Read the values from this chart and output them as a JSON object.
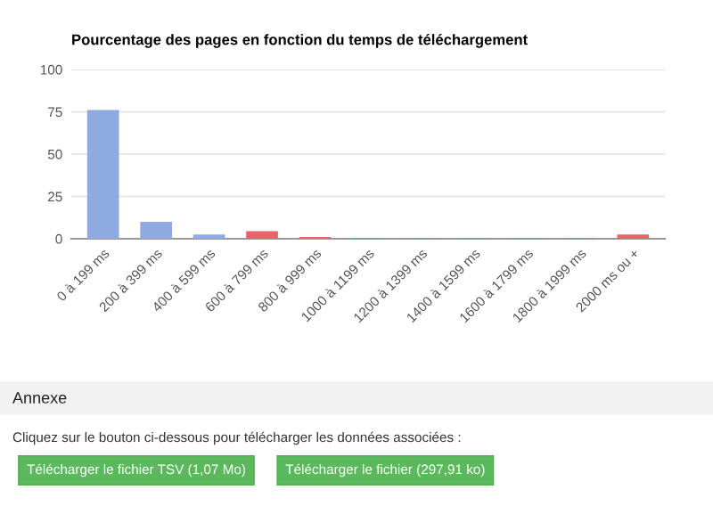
{
  "chart_data": {
    "type": "bar",
    "title": "Pourcentage des pages en fonction du temps de téléchargement",
    "categories": [
      "0 à 199 ms",
      "200 à 399 ms",
      "400 à 599 ms",
      "600 à 799 ms",
      "800 à 999 ms",
      "1000 à 1199 ms",
      "1200 à 1399 ms",
      "1400 à 1599 ms",
      "1600 à 1799 ms",
      "1800 à 1999 ms",
      "2000 ms ou +"
    ],
    "values": [
      76,
      10,
      2.5,
      4.5,
      1,
      0.3,
      0.3,
      0.3,
      0.3,
      0.3,
      2.5
    ],
    "colors": [
      "#8eaae0",
      "#8eaae0",
      "#8eaae0",
      "#e8636a",
      "#e8636a",
      "#e8636a",
      "#e8636a",
      "#e8636a",
      "#e8636a",
      "#e8636a",
      "#e8636a"
    ],
    "ylim": [
      0,
      100
    ],
    "yticks": [
      0,
      25,
      50,
      75,
      100
    ],
    "grid": "y",
    "legend": false,
    "annotations": [
      "Annexe",
      "Cliquez sur le bouton ci-dessous pour télécharger les données associées :",
      "Télécharger le fichier TSV (1,07 Mo)",
      "Télécharger le fichier (297,91 ko)"
    ]
  }
}
